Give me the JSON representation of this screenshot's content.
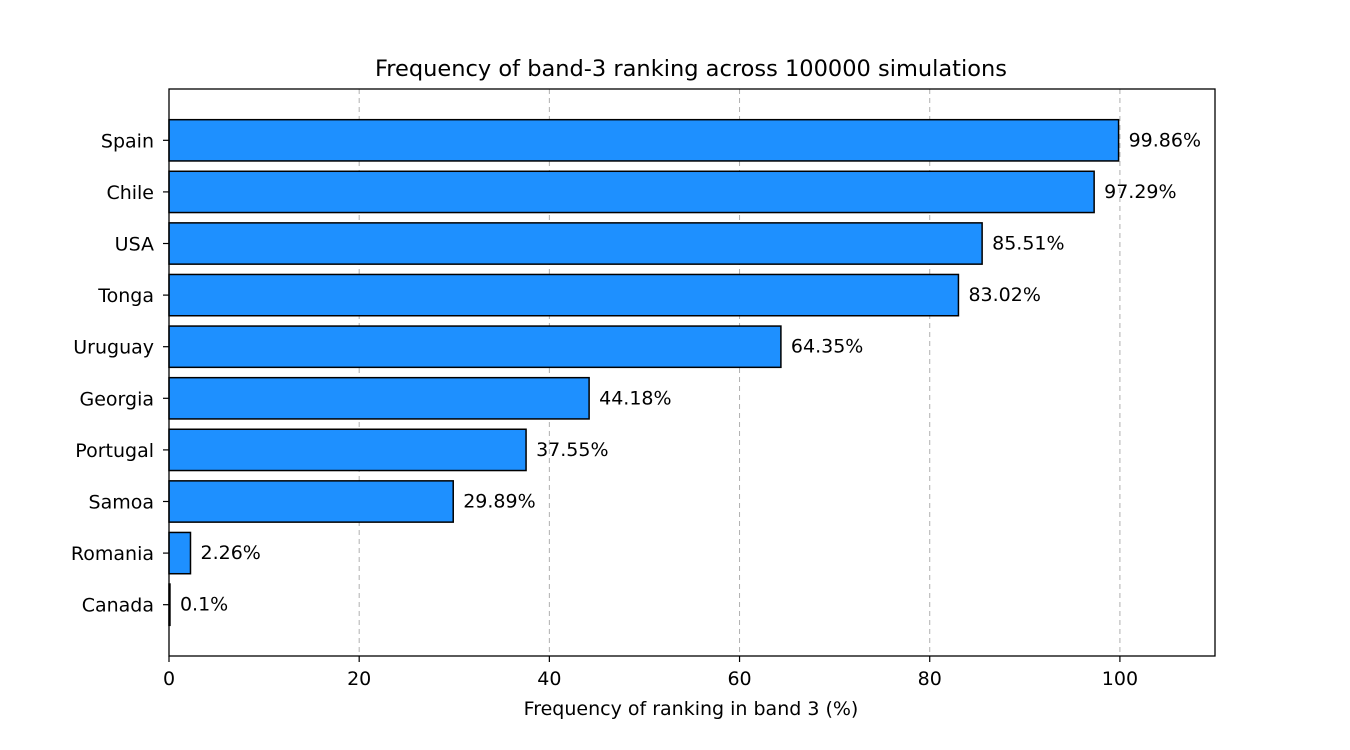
{
  "chart_data": {
    "type": "bar",
    "orientation": "horizontal",
    "title": "Frequency of band-3 ranking across 100000 simulations",
    "xlabel": "Frequency of ranking in band 3 (%)",
    "ylabel": "",
    "xlim": [
      0,
      110
    ],
    "xticks": [
      0,
      20,
      40,
      60,
      80,
      100
    ],
    "xtick_labels": [
      "0",
      "20",
      "40",
      "60",
      "80",
      "100"
    ],
    "grid": "x, dashed",
    "bar_color": "#1e90ff",
    "bar_edge_color": "#000000",
    "categories": [
      "Spain",
      "Chile",
      "USA",
      "Tonga",
      "Uruguay",
      "Georgia",
      "Portugal",
      "Samoa",
      "Romania",
      "Canada"
    ],
    "values": [
      99.86,
      97.29,
      85.51,
      83.02,
      64.35,
      44.18,
      37.55,
      29.89,
      2.26,
      0.1
    ],
    "value_labels": [
      "99.86%",
      "97.29%",
      "85.51%",
      "83.02%",
      "64.35%",
      "44.18%",
      "37.55%",
      "29.89%",
      "2.26%",
      "0.1%"
    ]
  }
}
